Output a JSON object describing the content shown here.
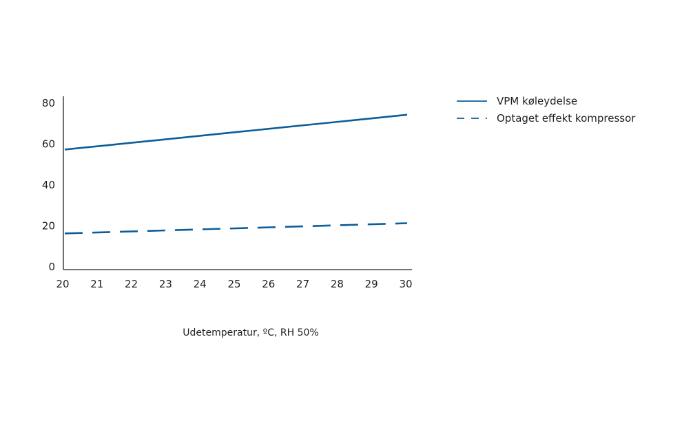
{
  "chart_data": {
    "type": "line",
    "title": "",
    "xlabel": "Udetemperatur, ºC, RH 50%",
    "ylabel": "",
    "x": [
      20,
      21,
      22,
      23,
      24,
      25,
      26,
      27,
      28,
      29,
      30
    ],
    "xlim": [
      20,
      30
    ],
    "ylim": [
      0,
      80
    ],
    "yticks": [
      0,
      20,
      40,
      60,
      80
    ],
    "xticks": [
      20,
      21,
      22,
      23,
      24,
      25,
      26,
      27,
      28,
      29,
      30
    ],
    "grid": false,
    "legend_position": "top-right",
    "series": [
      {
        "name": "VPM køleydelse",
        "style": "solid",
        "color": "#0b5d9a",
        "values": [
          57,
          58.7,
          60.4,
          62.1,
          63.8,
          65.5,
          67.2,
          68.9,
          70.6,
          72.3,
          74
        ]
      },
      {
        "name": "Optaget effekt kompressor",
        "style": "dashed",
        "color": "#0b5d9a",
        "values": [
          16,
          16.5,
          17,
          17.5,
          18,
          18.5,
          19,
          19.5,
          20,
          20.5,
          21
        ]
      }
    ]
  }
}
